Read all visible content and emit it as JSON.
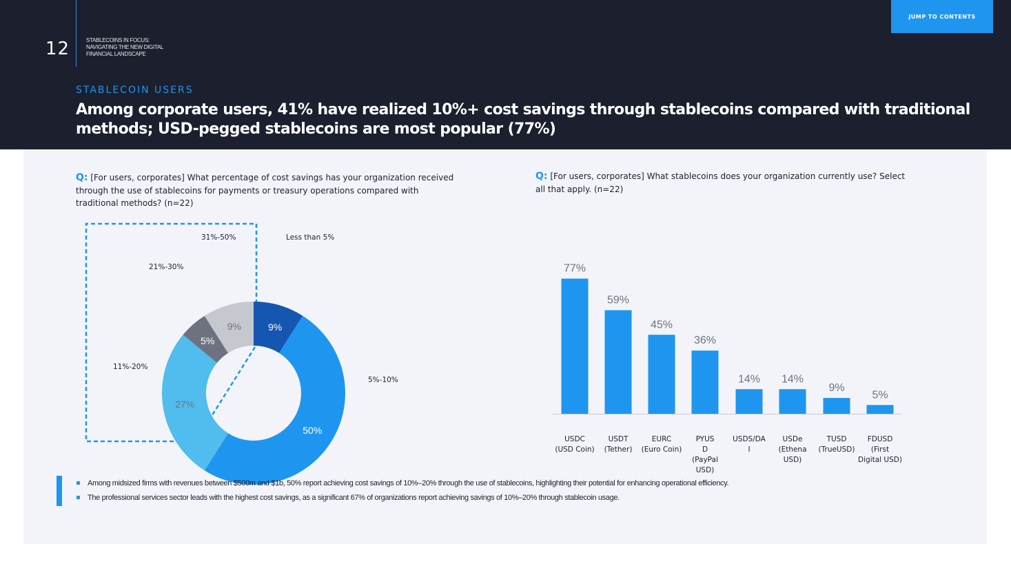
{
  "header": {
    "page_number": "12",
    "report_title_lines": [
      "STABLECOINS IN FOCUS:",
      "NAVIGATING THE NEW DIGITAL",
      "FINANCIAL LANDSCAPE"
    ],
    "jump_button": "JUMP TO CONTENTS",
    "section_label": "STABLECOIN USERS",
    "headline": "Among corporate users, 41% have realized 10%+ cost savings through stablecoins compared with traditional methods; USD-pegged stablecoins are most popular (77%)"
  },
  "colors": {
    "header_bg": "#1b1f2e",
    "accent": "#1e96f0",
    "panel_bg": "#f3f4f9"
  },
  "left": {
    "question_prefix": "Q:",
    "question": "[For users, corporates] What percentage of cost savings has your organization received through the use of stablecoins for payments or treasury operations compared with traditional methods?  (n=22)"
  },
  "right": {
    "question_prefix": "Q:",
    "question": "[For users, corporates] What stablecoins does your organization currently use? Select all that apply. (n=22)"
  },
  "chart_data": [
    {
      "type": "pie",
      "variant": "donut",
      "categories": [
        "Less than 5%",
        "5%-10%",
        "11%-20%",
        "21%-30%",
        "31%-50%"
      ],
      "values": [
        9,
        50,
        27,
        5,
        9
      ],
      "value_labels": [
        "9%",
        "50%",
        "27%",
        "5%",
        "9%"
      ],
      "colors": [
        "#1456b0",
        "#1e96f0",
        "#50bdee",
        "#6e7280",
        "#c6c8d0"
      ],
      "label_colors": [
        "#ffffff",
        "#ffffff",
        "#6e7280",
        "#ffffff",
        "#6e7280"
      ],
      "highlighted_segments": [
        "11%-20%",
        "21%-30%",
        "31%-50%"
      ]
    },
    {
      "type": "bar",
      "categories": [
        "USDC (USD Coin)",
        "USDT (Tether)",
        "EURC (Euro Coin)",
        "PYUSD (PayPal USD)",
        "USDS/DAI",
        "USDe (Ethena USD)",
        "TUSD (TrueUSD)",
        "FDUSD (First Digital USD)"
      ],
      "category_label_lines": [
        [
          "USDC",
          "(USD Coin)"
        ],
        [
          "USDT",
          "(Tether)"
        ],
        [
          "EURC",
          "(Euro Coin)"
        ],
        [
          "PYUS",
          "D",
          "(PayPal",
          "USD)"
        ],
        [
          "USDS/DA",
          "I"
        ],
        [
          "USDe",
          "(Ethena",
          "USD)"
        ],
        [
          "TUSD",
          "(TrueUSD)"
        ],
        [
          "FDUSD",
          "(First",
          "Digital USD)"
        ]
      ],
      "values": [
        77,
        59,
        45,
        36,
        14,
        14,
        9,
        5
      ],
      "value_labels": [
        "77%",
        "59%",
        "45%",
        "36%",
        "14%",
        "14%",
        "9%",
        "5%"
      ],
      "ylim": [
        0,
        100
      ],
      "bar_color": "#1e96f0",
      "grid": false
    }
  ],
  "bullets": [
    "Among midsized firms with revenues between $500m and $1b, 50% report achieving cost savings of 10%–20% through the use of stablecoins, highlighting their potential for enhancing operational efficiency.",
    "The professional services sector leads with the highest cost savings, as a significant 67% of organizations report achieving savings of 10%–20% through stablecoin usage."
  ]
}
